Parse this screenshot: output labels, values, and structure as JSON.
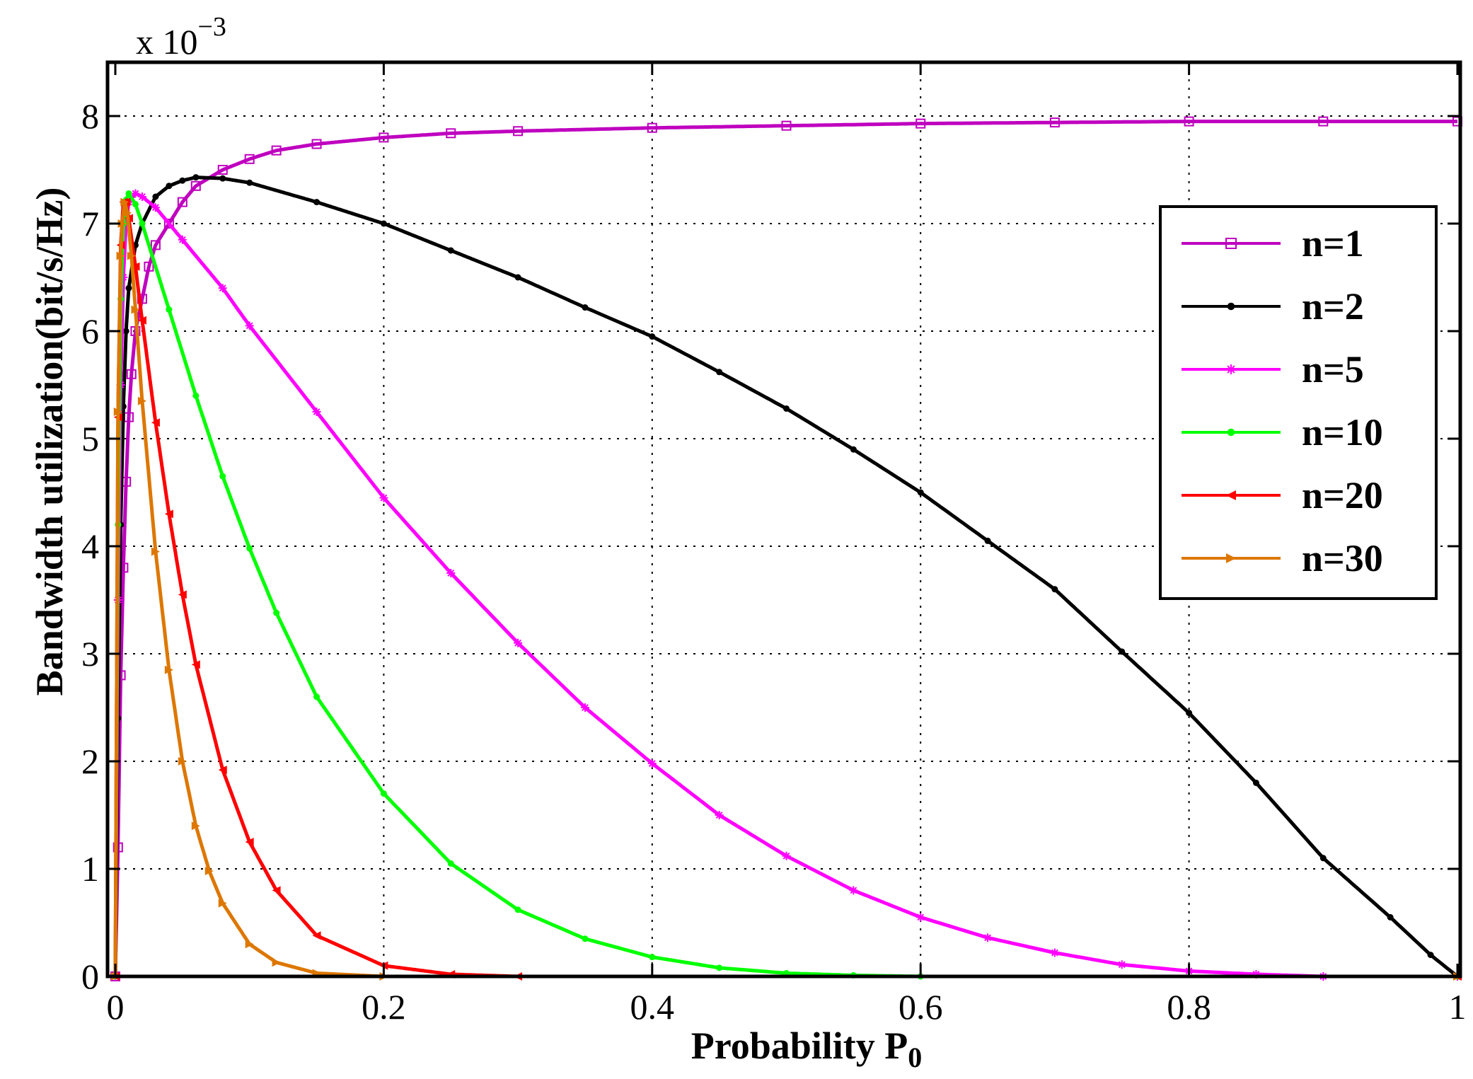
{
  "chart_data": {
    "type": "line",
    "title": "",
    "xlabel": "Probability P",
    "xlabel_subscript": "0",
    "ylabel": "Bandwidth utilization(bit/s/Hz)",
    "y_multiplier": {
      "base": "x 10",
      "exponent": "−3"
    },
    "xlim": [
      0,
      1
    ],
    "ylim": [
      0,
      8.5
    ],
    "xticks": [
      0,
      0.2,
      0.4,
      0.6,
      0.8,
      1
    ],
    "xtick_labels": [
      "0",
      "0.2",
      "0.4",
      "0.6",
      "0.8",
      "1"
    ],
    "yticks": [
      0,
      1,
      2,
      3,
      4,
      5,
      6,
      7,
      8
    ],
    "ytick_labels": [
      "0",
      "1",
      "2",
      "3",
      "4",
      "5",
      "6",
      "7",
      "8"
    ],
    "grid": true,
    "legend_position": "top-right",
    "series": [
      {
        "name": "n=1",
        "color": "#bf00bf",
        "marker": "square",
        "points": [
          [
            0,
            0
          ],
          [
            0.002,
            1.2
          ],
          [
            0.004,
            2.8
          ],
          [
            0.006,
            3.8
          ],
          [
            0.008,
            4.6
          ],
          [
            0.01,
            5.2
          ],
          [
            0.012,
            5.6
          ],
          [
            0.015,
            6.0
          ],
          [
            0.02,
            6.3
          ],
          [
            0.025,
            6.6
          ],
          [
            0.03,
            6.8
          ],
          [
            0.04,
            7.0
          ],
          [
            0.05,
            7.2
          ],
          [
            0.06,
            7.35
          ],
          [
            0.08,
            7.5
          ],
          [
            0.1,
            7.6
          ],
          [
            0.12,
            7.68
          ],
          [
            0.15,
            7.74
          ],
          [
            0.2,
            7.8
          ],
          [
            0.25,
            7.84
          ],
          [
            0.3,
            7.86
          ],
          [
            0.4,
            7.89
          ],
          [
            0.5,
            7.91
          ],
          [
            0.6,
            7.93
          ],
          [
            0.7,
            7.94
          ],
          [
            0.8,
            7.95
          ],
          [
            0.9,
            7.95
          ],
          [
            1.0,
            7.95
          ]
        ]
      },
      {
        "name": "n=2",
        "color": "#000000",
        "marker": "dot",
        "points": [
          [
            0,
            0
          ],
          [
            0.002,
            2.4
          ],
          [
            0.004,
            4.2
          ],
          [
            0.006,
            5.3
          ],
          [
            0.008,
            6.0
          ],
          [
            0.01,
            6.4
          ],
          [
            0.015,
            6.8
          ],
          [
            0.02,
            7.0
          ],
          [
            0.03,
            7.25
          ],
          [
            0.04,
            7.35
          ],
          [
            0.05,
            7.4
          ],
          [
            0.06,
            7.43
          ],
          [
            0.08,
            7.42
          ],
          [
            0.1,
            7.38
          ],
          [
            0.15,
            7.2
          ],
          [
            0.2,
            7.0
          ],
          [
            0.25,
            6.75
          ],
          [
            0.3,
            6.5
          ],
          [
            0.35,
            6.22
          ],
          [
            0.4,
            5.95
          ],
          [
            0.45,
            5.62
          ],
          [
            0.5,
            5.28
          ],
          [
            0.55,
            4.9
          ],
          [
            0.6,
            4.5
          ],
          [
            0.65,
            4.05
          ],
          [
            0.7,
            3.6
          ],
          [
            0.75,
            3.02
          ],
          [
            0.8,
            2.45
          ],
          [
            0.85,
            1.8
          ],
          [
            0.9,
            1.1
          ],
          [
            0.95,
            0.55
          ],
          [
            0.98,
            0.2
          ],
          [
            1.0,
            0
          ]
        ]
      },
      {
        "name": "n=5",
        "color": "#ff00ff",
        "marker": "star",
        "points": [
          [
            0,
            0
          ],
          [
            0.002,
            3.5
          ],
          [
            0.004,
            5.5
          ],
          [
            0.006,
            6.5
          ],
          [
            0.008,
            7.0
          ],
          [
            0.01,
            7.2
          ],
          [
            0.015,
            7.28
          ],
          [
            0.02,
            7.25
          ],
          [
            0.03,
            7.15
          ],
          [
            0.05,
            6.85
          ],
          [
            0.08,
            6.4
          ],
          [
            0.1,
            6.05
          ],
          [
            0.15,
            5.25
          ],
          [
            0.2,
            4.45
          ],
          [
            0.25,
            3.75
          ],
          [
            0.3,
            3.1
          ],
          [
            0.35,
            2.5
          ],
          [
            0.4,
            1.98
          ],
          [
            0.45,
            1.5
          ],
          [
            0.5,
            1.12
          ],
          [
            0.55,
            0.8
          ],
          [
            0.6,
            0.55
          ],
          [
            0.65,
            0.36
          ],
          [
            0.7,
            0.22
          ],
          [
            0.75,
            0.11
          ],
          [
            0.8,
            0.05
          ],
          [
            0.85,
            0.02
          ],
          [
            0.9,
            0.0
          ],
          [
            1.0,
            0.0
          ]
        ]
      },
      {
        "name": "n=10",
        "color": "#00ff00",
        "marker": "dot",
        "points": [
          [
            0,
            0
          ],
          [
            0.002,
            4.2
          ],
          [
            0.004,
            6.3
          ],
          [
            0.006,
            7.0
          ],
          [
            0.008,
            7.22
          ],
          [
            0.01,
            7.28
          ],
          [
            0.015,
            7.18
          ],
          [
            0.02,
            7.0
          ],
          [
            0.04,
            6.2
          ],
          [
            0.06,
            5.4
          ],
          [
            0.08,
            4.65
          ],
          [
            0.1,
            3.98
          ],
          [
            0.12,
            3.38
          ],
          [
            0.15,
            2.6
          ],
          [
            0.2,
            1.7
          ],
          [
            0.25,
            1.05
          ],
          [
            0.3,
            0.62
          ],
          [
            0.35,
            0.35
          ],
          [
            0.4,
            0.18
          ],
          [
            0.45,
            0.08
          ],
          [
            0.5,
            0.03
          ],
          [
            0.55,
            0.01
          ],
          [
            0.6,
            0.0
          ],
          [
            1.0,
            0.0
          ]
        ]
      },
      {
        "name": "n=20",
        "color": "#ff0000",
        "marker": "left-triangle",
        "points": [
          [
            0,
            0
          ],
          [
            0.002,
            5.2
          ],
          [
            0.004,
            6.8
          ],
          [
            0.006,
            7.2
          ],
          [
            0.008,
            7.2
          ],
          [
            0.01,
            7.05
          ],
          [
            0.015,
            6.6
          ],
          [
            0.02,
            6.1
          ],
          [
            0.03,
            5.15
          ],
          [
            0.04,
            4.3
          ],
          [
            0.05,
            3.55
          ],
          [
            0.06,
            2.9
          ],
          [
            0.08,
            1.92
          ],
          [
            0.1,
            1.25
          ],
          [
            0.12,
            0.8
          ],
          [
            0.15,
            0.38
          ],
          [
            0.2,
            0.1
          ],
          [
            0.25,
            0.02
          ],
          [
            0.3,
            0.0
          ],
          [
            1.0,
            0.0
          ]
        ]
      },
      {
        "name": "n=30",
        "color": "#dd7700",
        "marker": "right-triangle",
        "points": [
          [
            0,
            0
          ],
          [
            0.002,
            5.25
          ],
          [
            0.004,
            6.7
          ],
          [
            0.005,
            7.0
          ],
          [
            0.007,
            7.2
          ],
          [
            0.009,
            7.1
          ],
          [
            0.012,
            6.7
          ],
          [
            0.015,
            6.2
          ],
          [
            0.02,
            5.35
          ],
          [
            0.03,
            3.95
          ],
          [
            0.04,
            2.85
          ],
          [
            0.05,
            2.0
          ],
          [
            0.06,
            1.4
          ],
          [
            0.07,
            0.98
          ],
          [
            0.08,
            0.68
          ],
          [
            0.1,
            0.3
          ],
          [
            0.12,
            0.13
          ],
          [
            0.15,
            0.03
          ],
          [
            0.2,
            0.0
          ],
          [
            1.0,
            0.0
          ]
        ]
      }
    ]
  }
}
